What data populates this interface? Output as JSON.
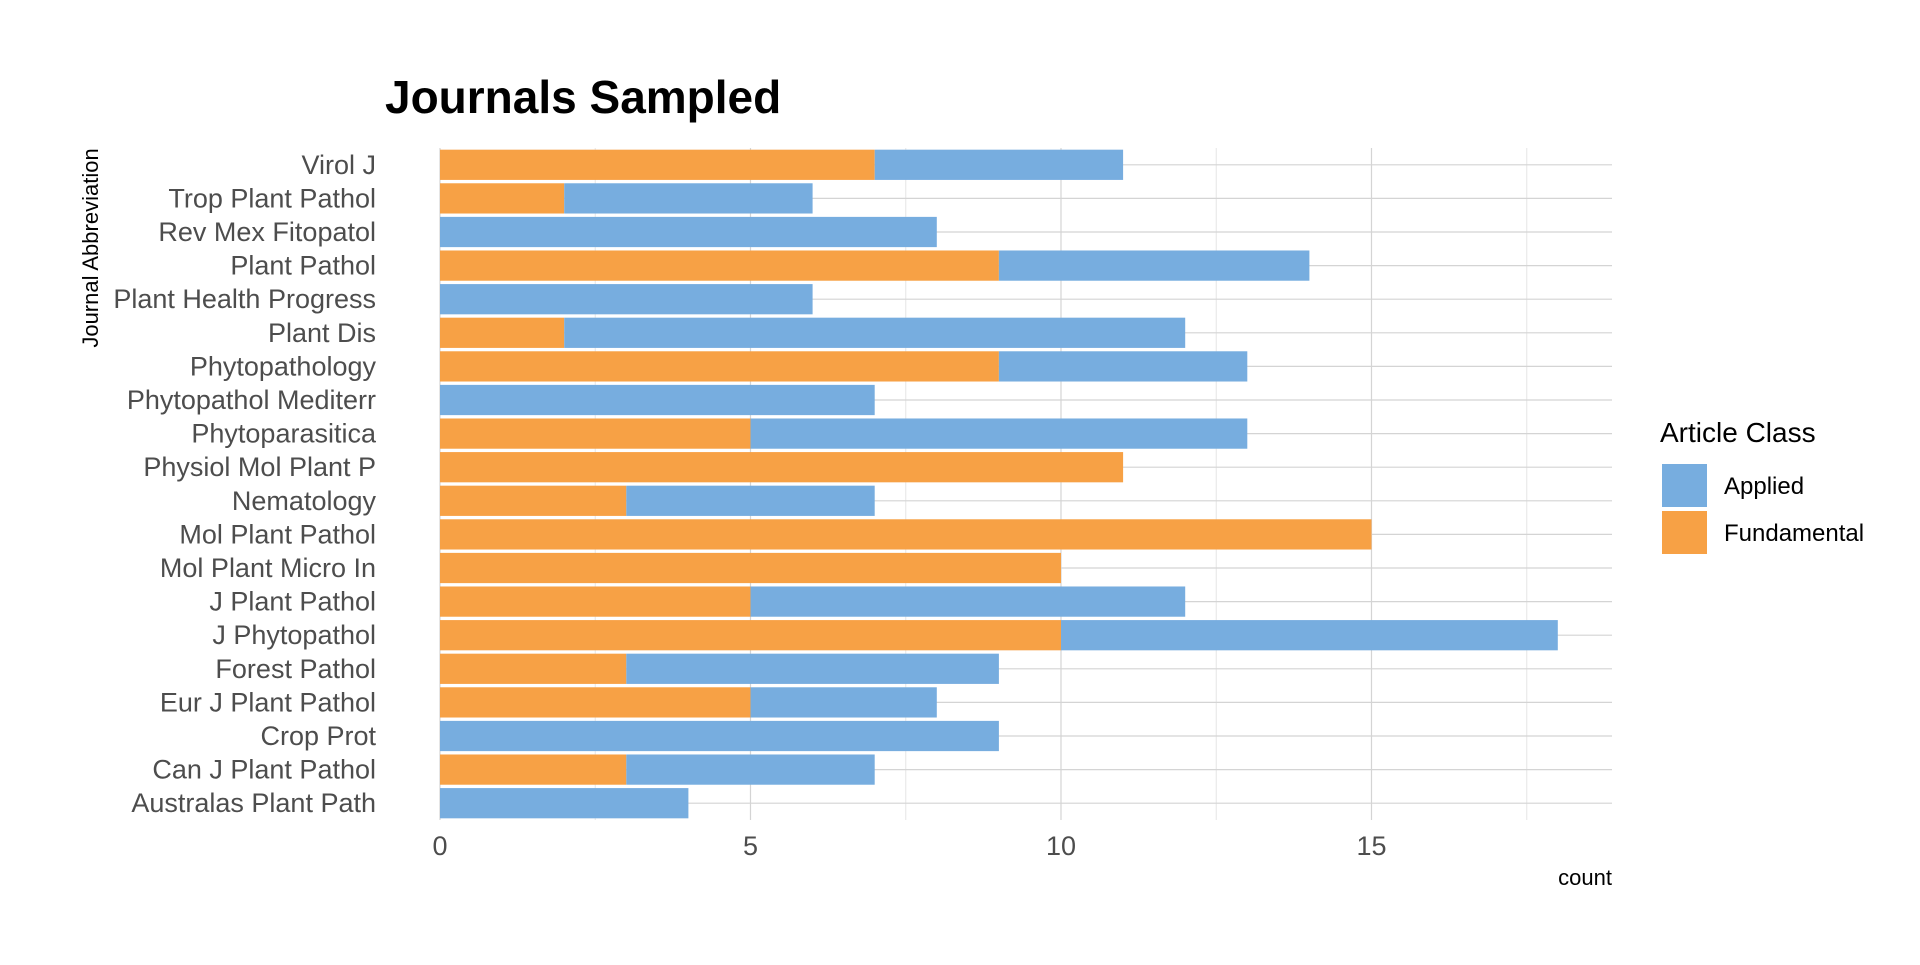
{
  "chart_data": {
    "type": "bar",
    "orientation": "horizontal",
    "stacked": true,
    "title": "Journals Sampled",
    "xlabel": "count",
    "ylabel": "Journal Abbreviation",
    "xlim": [
      0,
      18.9
    ],
    "x_ticks": [
      0,
      5,
      10,
      15
    ],
    "grid": true,
    "legend": {
      "title": "Article Class",
      "position": "right"
    },
    "categories": [
      "Australas Plant Path",
      "Can J Plant Pathol",
      "Crop Prot",
      "Eur J Plant Pathol",
      "Forest Pathol",
      "J Phytopathol",
      "J Plant Pathol",
      "Mol Plant Micro In",
      "Mol Plant Pathol",
      "Nematology",
      "Physiol Mol Plant P",
      "Phytoparasitica",
      "Phytopathol Mediterr",
      "Phytopathology",
      "Plant Dis",
      "Plant Health Progress",
      "Plant Pathol",
      "Rev Mex Fitopatol",
      "Trop Plant Pathol",
      "Virol J"
    ],
    "series": [
      {
        "name": "Fundamental",
        "color": "#F7A145",
        "values": [
          0,
          3,
          0,
          5,
          3,
          10,
          5,
          10,
          15,
          3,
          11,
          5,
          0,
          9,
          2,
          0,
          9,
          0,
          2,
          7
        ]
      },
      {
        "name": "Applied",
        "color": "#77ADDF",
        "values": [
          4,
          4,
          9,
          3,
          6,
          8,
          7,
          0,
          0,
          4,
          0,
          8,
          7,
          4,
          10,
          6,
          5,
          8,
          4,
          4
        ]
      }
    ]
  }
}
